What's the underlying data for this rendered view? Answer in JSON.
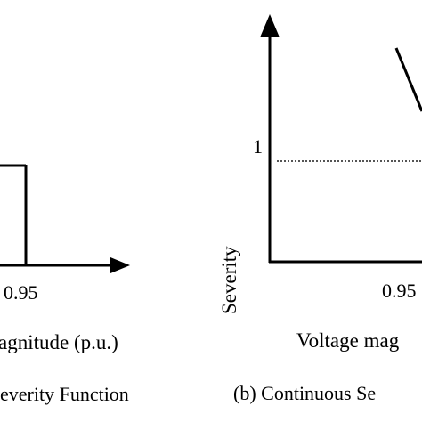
{
  "panel_a": {
    "tick_095": "0.95",
    "xlabel_fragment": "agnitude (p.u.)",
    "caption_fragment": "everity Function"
  },
  "panel_b": {
    "ytick_1": "1",
    "ylabel": "Severity",
    "tick_095": "0.95",
    "xlabel_fragment": "Voltage mag",
    "caption_fragment": "(b) Continuous Se"
  },
  "colors": {
    "line": "#000000",
    "dotted_reference": "#555555"
  }
}
